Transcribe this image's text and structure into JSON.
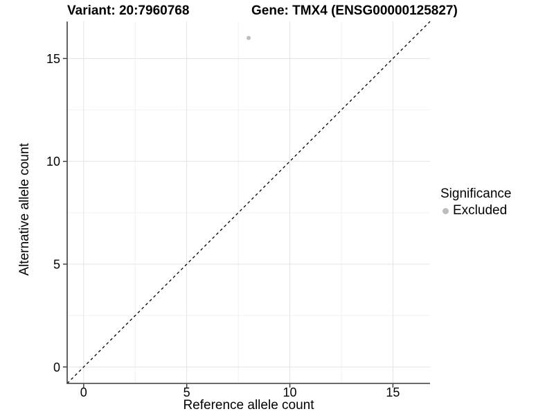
{
  "chart_data": {
    "type": "scatter",
    "title_left": "Variant: 20:7960768",
    "title_right": "Gene: TMX4 (ENSG00000125827)",
    "xlabel": "Reference allele count",
    "ylabel": "Alternative allele count",
    "xlim": [
      -0.8,
      16.8
    ],
    "ylim": [
      -0.8,
      16.8
    ],
    "x_ticks": [
      0,
      5,
      10,
      15
    ],
    "y_ticks": [
      0,
      5,
      10,
      15
    ],
    "x_minor_ticks": [
      2.5,
      7.5,
      12.5
    ],
    "y_minor_ticks": [
      2.5,
      7.5,
      12.5
    ],
    "grid": "major+minor",
    "reference_line": {
      "type": "identity",
      "slope": 1,
      "intercept": 0,
      "style": "dashed",
      "color": "#000000"
    },
    "series": [
      {
        "name": "Excluded",
        "marker": "circle",
        "color": "#BDBDBD",
        "points": [
          {
            "x": 8,
            "y": 16
          }
        ]
      }
    ],
    "legend": {
      "title": "Significance",
      "position": "right",
      "items": [
        {
          "label": "Excluded",
          "color": "#BDBDBD"
        }
      ]
    }
  },
  "colors": {
    "background": "#FFFFFF",
    "grid_major": "#E3E3E3",
    "grid_minor": "#F1F1F1",
    "axis_line": "#3C3C3C",
    "tick_mark": "#333333",
    "text": "#000000",
    "point": "#BDBDBD"
  }
}
